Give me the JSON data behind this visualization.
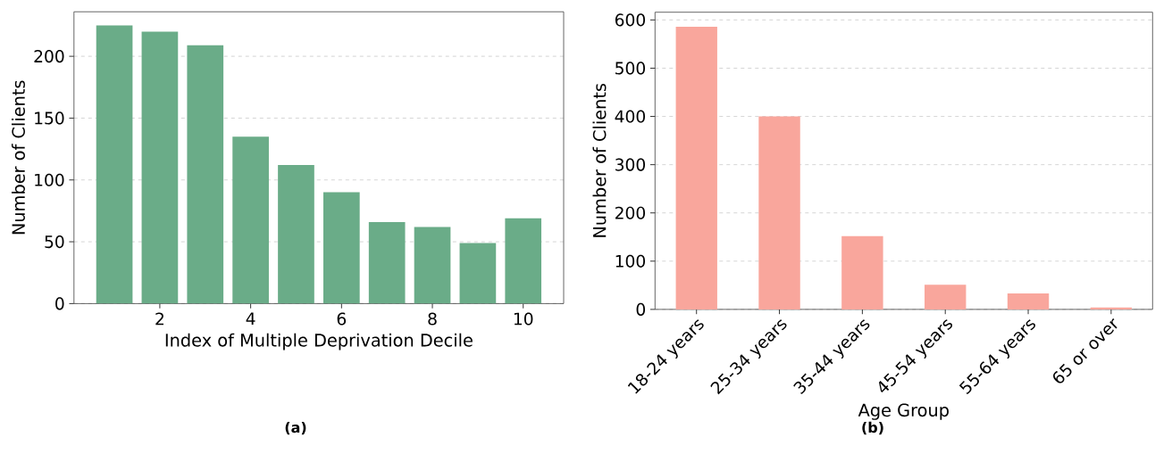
{
  "chart_data": [
    {
      "type": "bar",
      "x": [
        1,
        2,
        3,
        4,
        5,
        6,
        7,
        8,
        9,
        10
      ],
      "values": [
        225,
        220,
        209,
        135,
        112,
        90,
        66,
        62,
        49,
        69
      ],
      "color": "#6aac88",
      "xlabel": "Index of Multiple Deprivation Decile",
      "ylabel": "Number of Clients",
      "xlim": [
        0.11,
        10.89
      ],
      "xticks": [
        2,
        4,
        6,
        8,
        10
      ],
      "ylim": [
        0,
        236
      ],
      "yticks": [
        0,
        50,
        100,
        150,
        200
      ],
      "grid": "y",
      "annotations": [
        "(a)"
      ]
    },
    {
      "type": "bar",
      "categories": [
        "18-24 years",
        "25-34 years",
        "35-44 years",
        "45-54 years",
        "55-64 years",
        "65 or over"
      ],
      "values": [
        586,
        400,
        152,
        51,
        33,
        4
      ],
      "color": "#f9a69c",
      "xlabel": "Age Group",
      "ylabel": "Number of Clients",
      "ylim": [
        0,
        616
      ],
      "yticks": [
        0,
        100,
        200,
        300,
        400,
        500,
        600
      ],
      "grid": "y",
      "annotations": [
        "(b)"
      ]
    }
  ]
}
